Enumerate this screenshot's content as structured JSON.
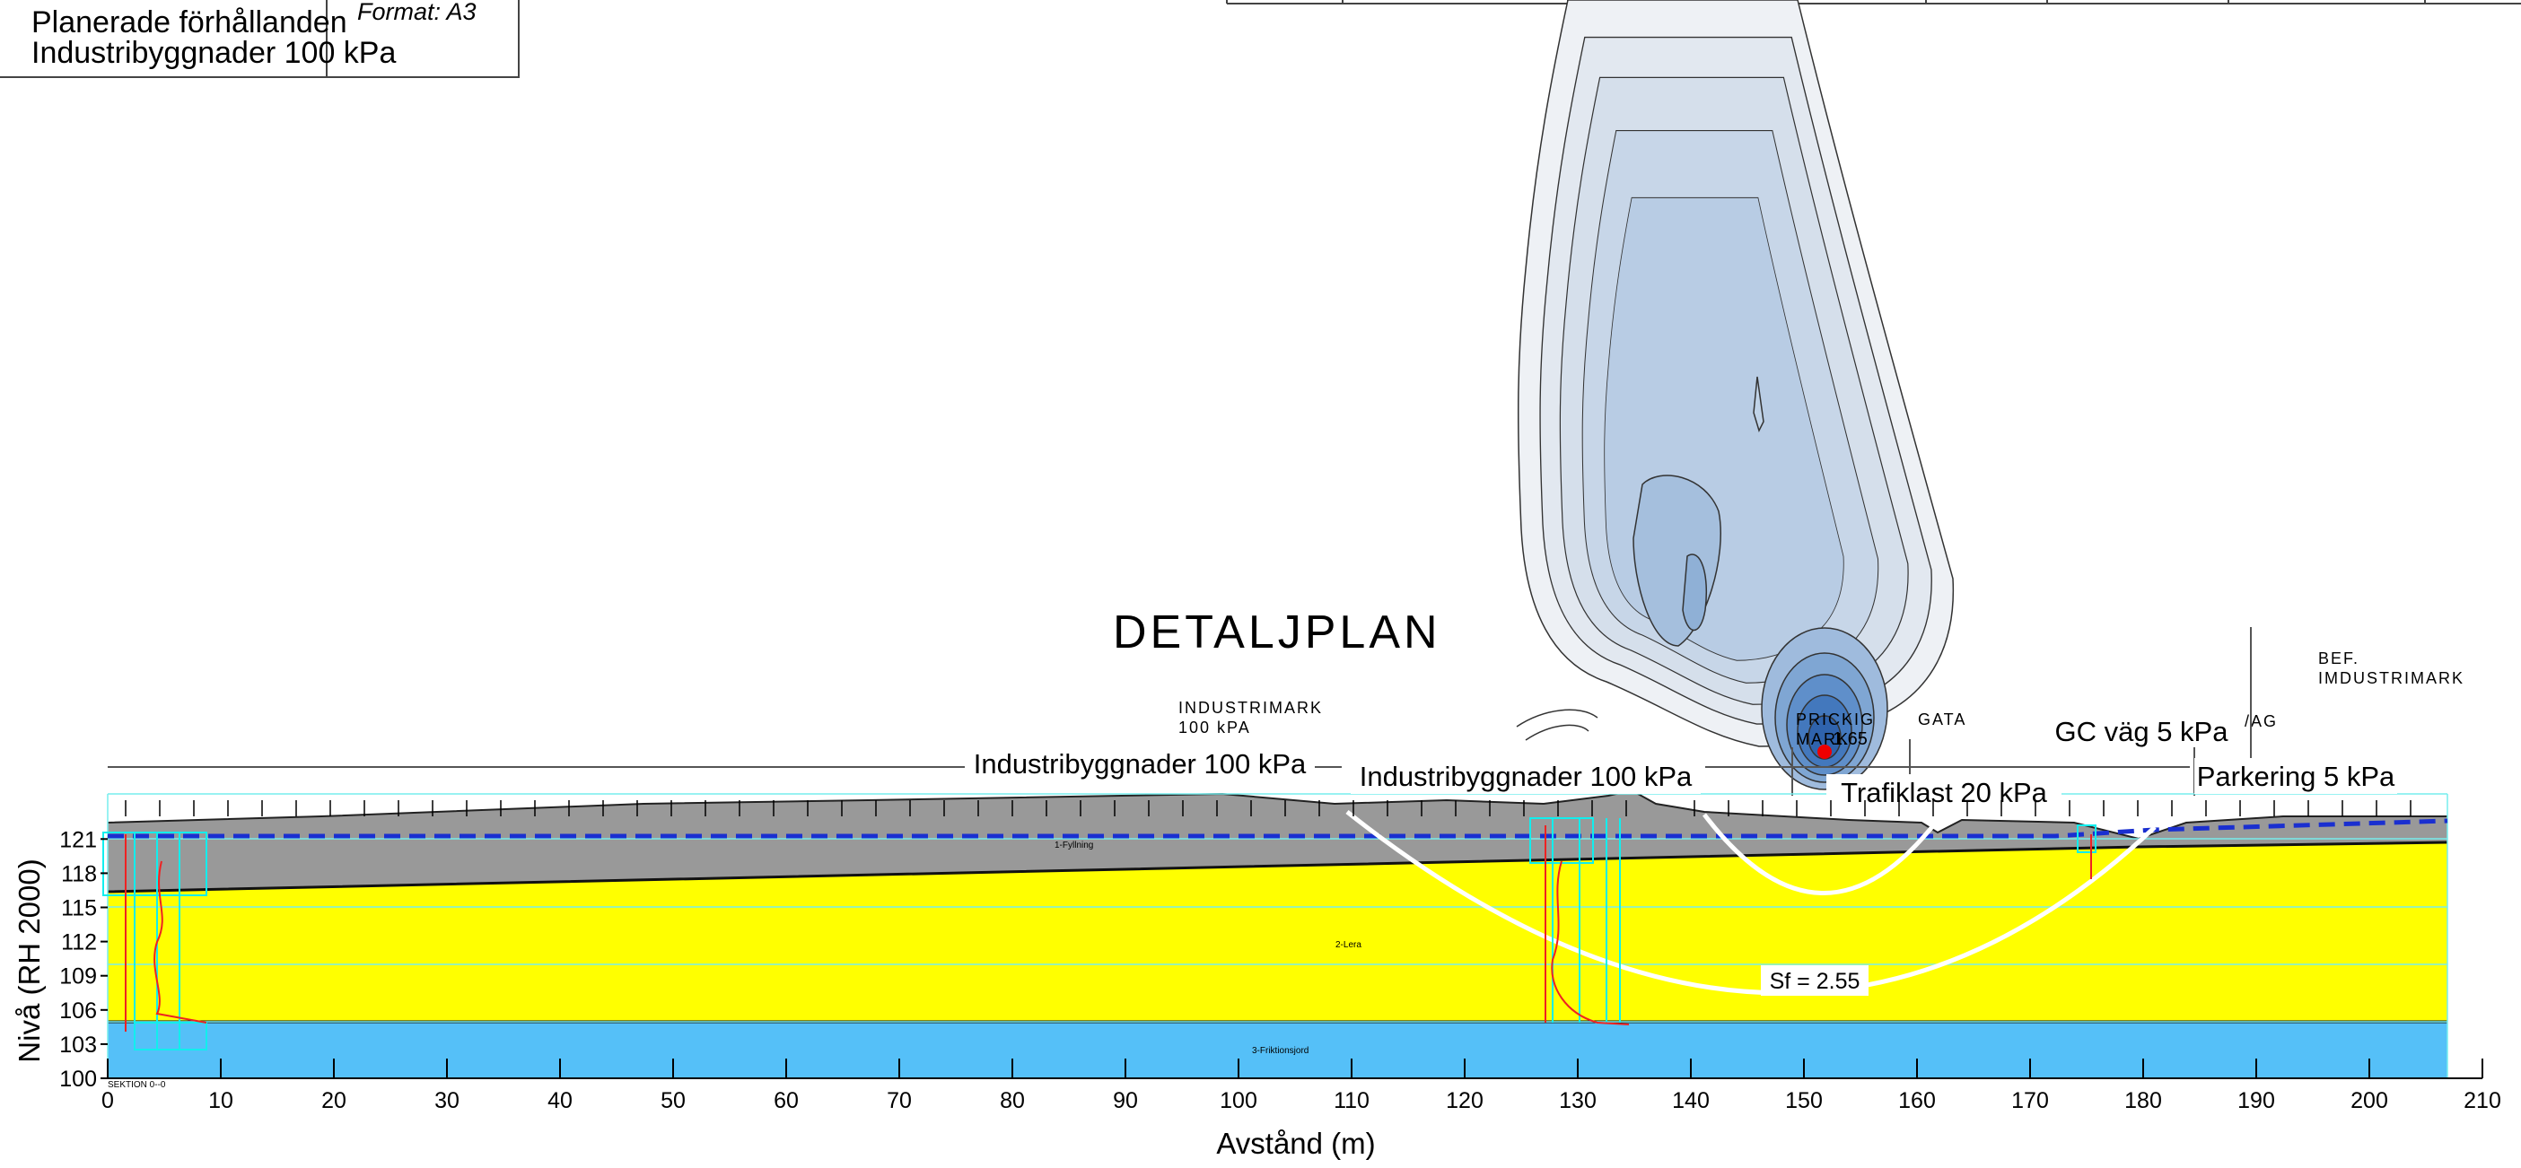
{
  "header": {
    "rows": [
      "Planerade förhållanden",
      "Industribyggnader 100 kPa"
    ],
    "format": "Format: A3"
  },
  "plan": {
    "title": "DETALJPLAN",
    "industrimark": [
      "INDUSTRIMARK",
      "100 kPA"
    ],
    "prickig": [
      "PRICKIG",
      "MARK"
    ],
    "gata": "GATA",
    "ag": "/AG",
    "bef": [
      "BEF.",
      "IMDUSTRIMARK"
    ]
  },
  "marker_value": "1.65",
  "loads": [
    "Industribyggnader 100 kPa",
    "Industribyggnader 100 kPa",
    "Trafiklast 20 kPa",
    "GC väg 5 kPa",
    "Parkering 5 kPa"
  ],
  "layers": [
    "1-Fyllning",
    "2-Lera",
    "3-Friktionsjord"
  ],
  "section": "SEKTION 0--0",
  "safety_factor": "Sf = 2.55",
  "axes": {
    "xlabel": "Avstånd (m)",
    "ylabel": "Nivå (RH 2000)",
    "xlim": [
      0,
      210
    ],
    "xticks": [
      0,
      10,
      20,
      30,
      40,
      50,
      60,
      70,
      80,
      90,
      100,
      110,
      120,
      130,
      140,
      150,
      160,
      170,
      180,
      190,
      200,
      210
    ],
    "ylim": [
      100,
      125
    ],
    "yticks": [
      100,
      103,
      106,
      109,
      112,
      115,
      118,
      121
    ]
  }
}
